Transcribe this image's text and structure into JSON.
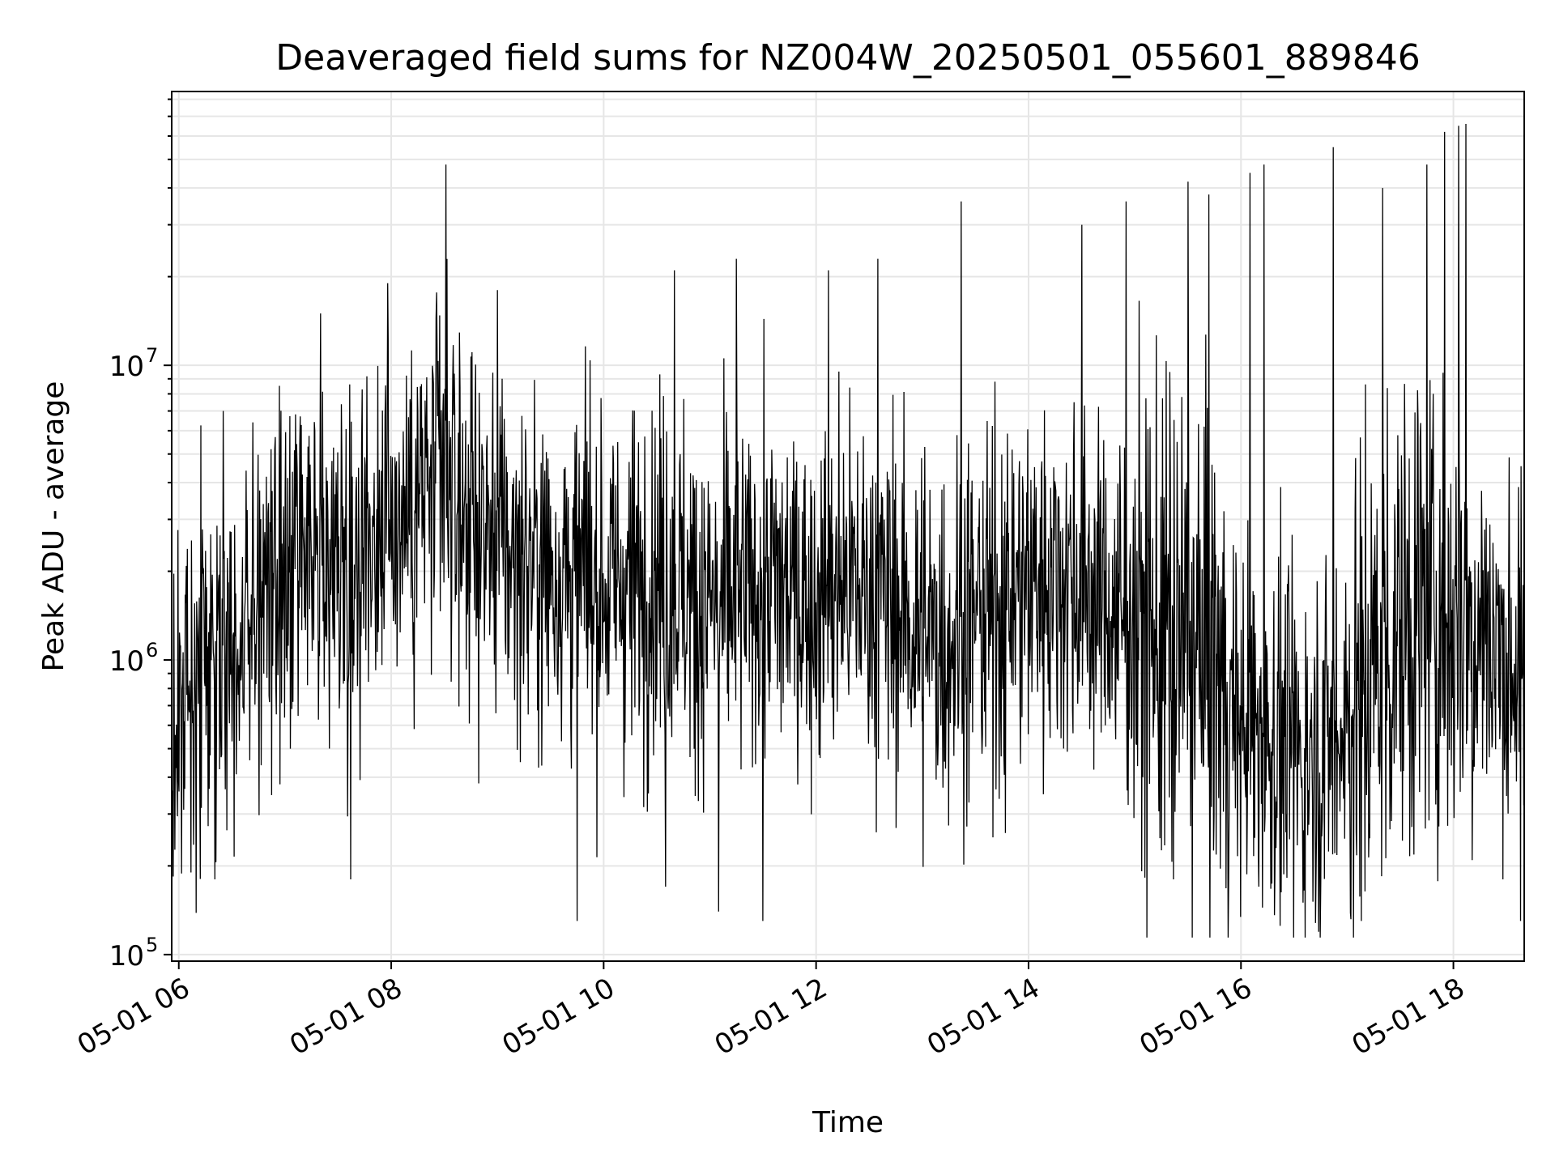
{
  "chart_data": {
    "type": "line",
    "title": "Deaveraged field sums for NZ004W_20250501_055601_889846",
    "xlabel": "Time",
    "ylabel": "Peak ADU - average",
    "yscale": "log",
    "ylim": [
      95000,
      85000000
    ],
    "xlim": [
      "05-01 05:56",
      "05-01 18:40"
    ],
    "x_ticks": [
      "05-01 06",
      "05-01 08",
      "05-01 10",
      "05-01 12",
      "05-01 14",
      "05-01 16",
      "05-01 18"
    ],
    "y_ticks": [
      {
        "base": "10",
        "exp": "5",
        "value": 100000
      },
      {
        "base": "10",
        "exp": "6",
        "value": 1000000
      },
      {
        "base": "10",
        "exp": "7",
        "value": 10000000
      }
    ],
    "grid": true,
    "line_color": "#000000",
    "series": [
      {
        "x": [
          "05-01 05:56",
          "05-01 06:10",
          "05-01 06:30",
          "05-01 06:45",
          "05-01 07:00",
          "05-01 07:15",
          "05-01 07:30",
          "05-01 07:45",
          "05-01 08:00",
          "05-01 08:15",
          "05-01 08:30",
          "05-01 08:45",
          "05-01 09:00",
          "05-01 09:15",
          "05-01 09:30",
          "05-01 09:45",
          "05-01 10:00",
          "05-01 10:15",
          "05-01 10:30",
          "05-01 10:45",
          "05-01 11:00",
          "05-01 11:15",
          "05-01 11:30",
          "05-01 11:45",
          "05-01 12:00",
          "05-01 12:15",
          "05-01 12:30",
          "05-01 12:45",
          "05-01 13:00",
          "05-01 13:15",
          "05-01 13:30",
          "05-01 13:45",
          "05-01 14:00",
          "05-01 14:15",
          "05-01 14:30",
          "05-01 14:45",
          "05-01 15:00",
          "05-01 15:15",
          "05-01 15:30",
          "05-01 15:45",
          "05-01 16:00",
          "05-01 16:15",
          "05-01 16:30",
          "05-01 16:45",
          "05-01 17:00",
          "05-01 17:15",
          "05-01 17:30",
          "05-01 17:45",
          "05-01 18:00",
          "05-01 18:15",
          "05-01 18:40"
        ],
        "y": [
          550000,
          900000,
          1200000,
          1500000,
          1700000,
          2000000,
          2200000,
          2700000,
          3000000,
          3500000,
          4000000,
          3000000,
          2500000,
          2200000,
          2000000,
          2000000,
          1800000,
          1800000,
          2000000,
          1700000,
          1500000,
          1600000,
          1800000,
          1700000,
          1600000,
          1800000,
          1700000,
          1500000,
          1200000,
          1200000,
          1400000,
          1600000,
          1800000,
          2000000,
          1800000,
          1500000,
          1300000,
          1200000,
          1100000,
          900000,
          600000,
          550000,
          500000,
          500000,
          650000,
          900000,
          1300000,
          1500000,
          1400000,
          1300000,
          900000
        ],
        "peaks_x": [
          "05-01 06:25",
          "05-01 07:20",
          "05-01 07:58",
          "05-01 08:31",
          "05-01 09:00",
          "05-01 10:40",
          "05-01 11:15",
          "05-01 12:07",
          "05-01 12:35",
          "05-01 13:22",
          "05-01 14:30",
          "05-01 14:55",
          "05-01 15:30",
          "05-01 15:42",
          "05-01 16:05",
          "05-01 16:13",
          "05-01 16:52",
          "05-01 17:20",
          "05-01 17:45",
          "05-01 17:55",
          "05-01 18:03",
          "05-01 18:07"
        ],
        "peaks_y": [
          7000000,
          15000000,
          19000000,
          48000000,
          18000000,
          21000000,
          23000000,
          21000000,
          23000000,
          36000000,
          30000000,
          36000000,
          42000000,
          38000000,
          45000000,
          48000000,
          55000000,
          40000000,
          48000000,
          62000000,
          65000000,
          66000000
        ],
        "dips_x": [
          "05-01 06:07",
          "05-01 07:37",
          "05-01 09:45",
          "05-01 10:35",
          "05-01 11:05",
          "05-01 11:30",
          "05-01 13:40",
          "05-01 15:22",
          "05-01 16:10",
          "05-01 16:35",
          "05-01 17:08",
          "05-01 18:28",
          "05-01 18:38"
        ],
        "dips_y": [
          190000,
          180000,
          130000,
          170000,
          140000,
          130000,
          250000,
          180000,
          170000,
          150000,
          130000,
          180000,
          130000
        ]
      }
    ]
  }
}
